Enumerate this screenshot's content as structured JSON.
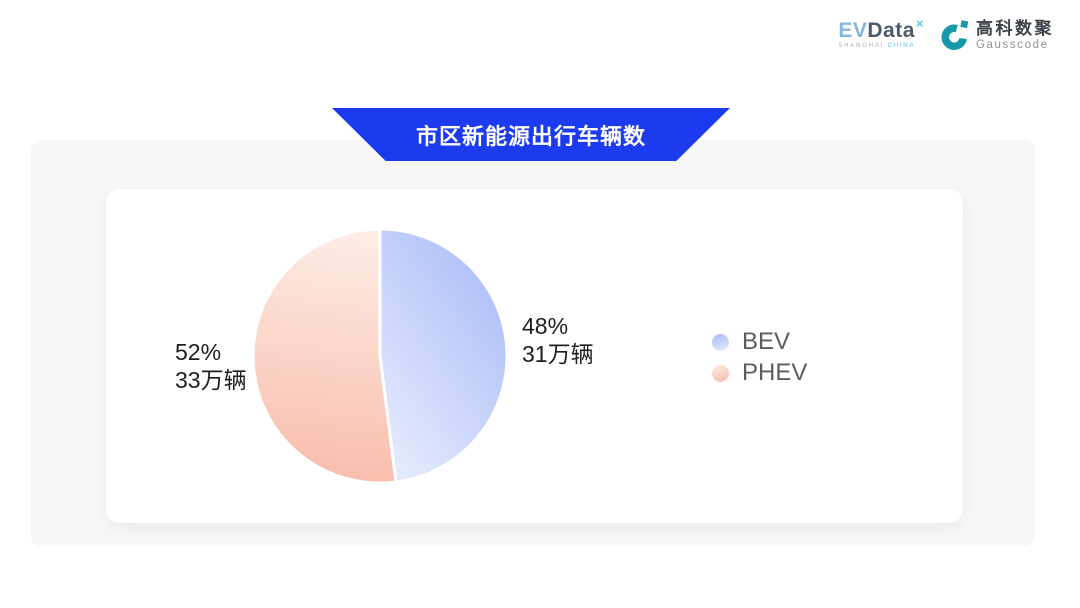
{
  "theme": {
    "banner_bg": "#1c3bef",
    "banner_text": "#ffffff",
    "panel_bg": "#f7f7f8",
    "card_bg": "#ffffff",
    "label_text": "#1f1f1f",
    "legend_text": "#595c61",
    "evdata_ev": "#85b7d9",
    "evdata_data": "#4c5b6b",
    "evdata_mark": "#63c3e8",
    "evdata_sub": "#a8b2ba",
    "evdata_sub_accent": "#5bc0e8",
    "gauss_icon": "#1599aa",
    "gauss_cn": "#3c4248",
    "gauss_en": "#8b9196"
  },
  "logo": {
    "evdata": {
      "ev": "EV",
      "data": "Data",
      "mark": "×",
      "subtext_left": "SHANGHAI",
      "subtext_right": "CHINA"
    },
    "gausscode": {
      "cn": "高科数聚",
      "en": "Gausscode"
    }
  },
  "chart_data": {
    "type": "pie",
    "title": "市区新能源出行车辆数",
    "legend_position": "right",
    "start_angle_deg": 0,
    "direction": "clockwise",
    "series": [
      {
        "name": "BEV",
        "value": 48,
        "percent_label": "48%",
        "count_label": "31万辆",
        "color_start": "#a9bbf7",
        "color_end": "#e6ebfd"
      },
      {
        "name": "PHEV",
        "value": 52,
        "percent_label": "52%",
        "count_label": "33万辆",
        "color_start": "#fdece5",
        "color_end": "#f8bcab"
      }
    ]
  }
}
